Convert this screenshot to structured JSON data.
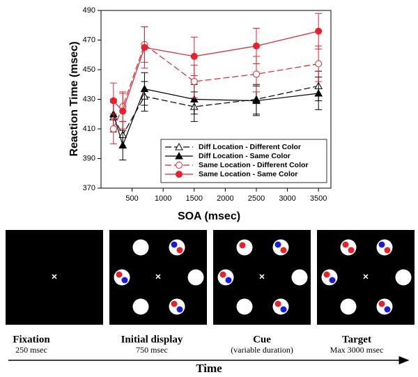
{
  "chart_data": {
    "type": "line",
    "x_label": "SOA (msec)",
    "y_label": "Reaction Time (msec)",
    "x": [
      200,
      350,
      700,
      1500,
      2500,
      3500
    ],
    "series": [
      {
        "name": "Diff Location - Different Color",
        "color": "#000000",
        "dashed": true,
        "marker": "triangle-open",
        "values": [
          418,
          406,
          432,
          425,
          430,
          439
        ],
        "errors": [
          10,
          9,
          10,
          10,
          10,
          10
        ]
      },
      {
        "name": "Diff Location - Same Color",
        "color": "#000000",
        "dashed": false,
        "marker": "triangle-filled",
        "values": [
          420,
          399,
          437,
          430,
          429,
          434
        ],
        "errors": [
          10,
          10,
          11,
          10,
          10,
          11
        ]
      },
      {
        "name": "Same Location - Different Color",
        "color": "#e8202a",
        "dashed": true,
        "marker": "circle-open",
        "values": [
          410,
          425,
          467,
          442,
          447,
          454
        ],
        "errors": [
          10,
          10,
          12,
          11,
          12,
          12
        ]
      },
      {
        "name": "Same Location - Same Color",
        "color": "#e8202a",
        "dashed": false,
        "marker": "circle-filled",
        "values": [
          429,
          422,
          465,
          459,
          466,
          476
        ],
        "errors": [
          12,
          12,
          14,
          13,
          12,
          12
        ]
      }
    ],
    "xlim": [
      0,
      3700
    ],
    "ylim": [
      370,
      490
    ],
    "xticks": [
      500,
      1000,
      1500,
      2000,
      2500,
      3000,
      3500
    ],
    "yticks": [
      370,
      390,
      410,
      430,
      450,
      470,
      490
    ],
    "legend": "lower right"
  },
  "diagram": {
    "panels": [
      {
        "title": "Fixation",
        "duration": "250 msec"
      },
      {
        "title": "Initial display",
        "duration": "750 msec"
      },
      {
        "title": "Cue",
        "duration": "(variable duration)"
      },
      {
        "title": "Target",
        "duration": "Max 3000 msec"
      }
    ],
    "time_label": "Time"
  }
}
